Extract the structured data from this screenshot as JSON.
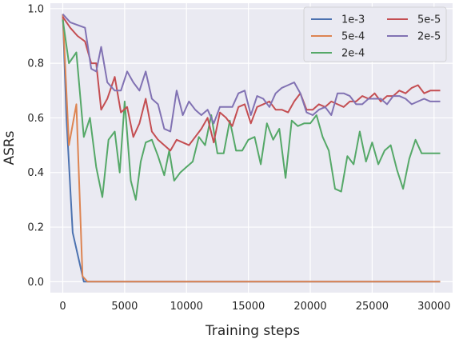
{
  "chart_data": {
    "type": "line",
    "title": "",
    "xlabel": "Training steps",
    "ylabel": "ASRs",
    "xlim": [
      -1000,
      31500
    ],
    "ylim": [
      -0.04,
      1.02
    ],
    "xticks": [
      0,
      5000,
      10000,
      15000,
      20000,
      25000,
      30000
    ],
    "xtick_labels": [
      "0",
      "5000",
      "10000",
      "15000",
      "20000",
      "25000",
      "30000"
    ],
    "yticks": [
      0.0,
      0.2,
      0.4,
      0.6,
      0.8,
      1.0
    ],
    "ytick_labels": [
      "0.0",
      "0.2",
      "0.4",
      "0.6",
      "0.8",
      "1.0"
    ],
    "grid": true,
    "legend_position": "top-right",
    "background": "#eaeaf2",
    "series": [
      {
        "name": "1e-3",
        "color": "#4c72b0",
        "x": [
          0,
          300,
          800,
          1700,
          30500
        ],
        "y": [
          0.98,
          0.6,
          0.18,
          0.0,
          0.0
        ]
      },
      {
        "name": "5e-4",
        "color": "#dd8452",
        "x": [
          0,
          500,
          1100,
          1600,
          2000,
          30500
        ],
        "y": [
          0.98,
          0.5,
          0.65,
          0.02,
          0.0,
          0.0
        ]
      },
      {
        "name": "2e-4",
        "color": "#55a868",
        "x": [
          0,
          500,
          1100,
          1700,
          2200,
          2700,
          3200,
          3700,
          4200,
          4600,
          5000,
          5500,
          5900,
          6300,
          6700,
          7200,
          7700,
          8200,
          8600,
          9000,
          9500,
          10000,
          10500,
          11000,
          11500,
          12000,
          12500,
          13000,
          13500,
          14000,
          14500,
          15000,
          15500,
          16000,
          16500,
          17000,
          17500,
          18000,
          18500,
          19000,
          19500,
          20000,
          20500,
          21000,
          21500,
          22000,
          22500,
          23000,
          23500,
          24000,
          24500,
          25000,
          25500,
          26000,
          26500,
          27000,
          27500,
          28000,
          28500,
          29000,
          29500,
          30000,
          30500
        ],
        "y": [
          0.96,
          0.8,
          0.84,
          0.53,
          0.6,
          0.42,
          0.31,
          0.52,
          0.55,
          0.4,
          0.66,
          0.37,
          0.3,
          0.44,
          0.51,
          0.52,
          0.46,
          0.39,
          0.48,
          0.37,
          0.4,
          0.42,
          0.44,
          0.53,
          0.5,
          0.61,
          0.47,
          0.47,
          0.59,
          0.48,
          0.48,
          0.52,
          0.53,
          0.43,
          0.58,
          0.52,
          0.56,
          0.38,
          0.59,
          0.57,
          0.58,
          0.58,
          0.61,
          0.53,
          0.48,
          0.34,
          0.33,
          0.46,
          0.43,
          0.55,
          0.44,
          0.51,
          0.43,
          0.48,
          0.5,
          0.41,
          0.34,
          0.45,
          0.52,
          0.47,
          0.47,
          0.47,
          0.47
        ]
      },
      {
        "name": "5e-5",
        "color": "#c44e52",
        "x": [
          0,
          600,
          1200,
          1800,
          2300,
          2700,
          3100,
          3600,
          4200,
          4700,
          5200,
          5700,
          6200,
          6700,
          7200,
          7700,
          8200,
          8700,
          9200,
          9700,
          10200,
          10700,
          11200,
          11700,
          12200,
          12700,
          13200,
          13700,
          14200,
          14700,
          15200,
          15700,
          16200,
          16700,
          17200,
          17700,
          18200,
          18700,
          19200,
          19700,
          20200,
          20700,
          21200,
          21700,
          22200,
          22700,
          23200,
          23700,
          24200,
          24700,
          25200,
          25700,
          26200,
          26700,
          27200,
          27700,
          28200,
          28700,
          29200,
          29700,
          30200,
          30500
        ],
        "y": [
          0.97,
          0.93,
          0.9,
          0.88,
          0.8,
          0.8,
          0.63,
          0.67,
          0.75,
          0.62,
          0.64,
          0.53,
          0.58,
          0.67,
          0.55,
          0.52,
          0.5,
          0.48,
          0.52,
          0.51,
          0.5,
          0.53,
          0.56,
          0.6,
          0.51,
          0.62,
          0.6,
          0.57,
          0.64,
          0.65,
          0.58,
          0.64,
          0.65,
          0.66,
          0.63,
          0.63,
          0.62,
          0.66,
          0.69,
          0.63,
          0.63,
          0.65,
          0.64,
          0.66,
          0.65,
          0.64,
          0.66,
          0.66,
          0.68,
          0.67,
          0.69,
          0.66,
          0.68,
          0.68,
          0.7,
          0.69,
          0.71,
          0.72,
          0.69,
          0.7,
          0.7,
          0.7
        ]
      },
      {
        "name": "2e-5",
        "color": "#8172b3",
        "x": [
          0,
          600,
          1200,
          1800,
          2300,
          2700,
          3100,
          3600,
          4200,
          4700,
          5200,
          5700,
          6200,
          6700,
          7200,
          7700,
          8200,
          8700,
          9200,
          9700,
          10200,
          10700,
          11200,
          11700,
          12200,
          12700,
          13200,
          13700,
          14200,
          14700,
          15200,
          15700,
          16200,
          16700,
          17200,
          17700,
          18200,
          18700,
          19200,
          19700,
          20200,
          20700,
          21200,
          21700,
          22200,
          22700,
          23200,
          23700,
          24200,
          24700,
          25200,
          25700,
          26200,
          26700,
          27200,
          27700,
          28200,
          28700,
          29200,
          29700,
          30200,
          30500
        ],
        "y": [
          0.98,
          0.95,
          0.94,
          0.93,
          0.78,
          0.77,
          0.86,
          0.73,
          0.7,
          0.7,
          0.77,
          0.73,
          0.7,
          0.77,
          0.67,
          0.65,
          0.56,
          0.55,
          0.7,
          0.61,
          0.66,
          0.63,
          0.61,
          0.63,
          0.58,
          0.64,
          0.64,
          0.64,
          0.69,
          0.7,
          0.61,
          0.68,
          0.67,
          0.64,
          0.69,
          0.71,
          0.72,
          0.73,
          0.69,
          0.62,
          0.61,
          0.63,
          0.64,
          0.61,
          0.69,
          0.69,
          0.68,
          0.65,
          0.65,
          0.67,
          0.67,
          0.67,
          0.65,
          0.68,
          0.68,
          0.67,
          0.65,
          0.66,
          0.67,
          0.66,
          0.66,
          0.66
        ]
      }
    ]
  }
}
